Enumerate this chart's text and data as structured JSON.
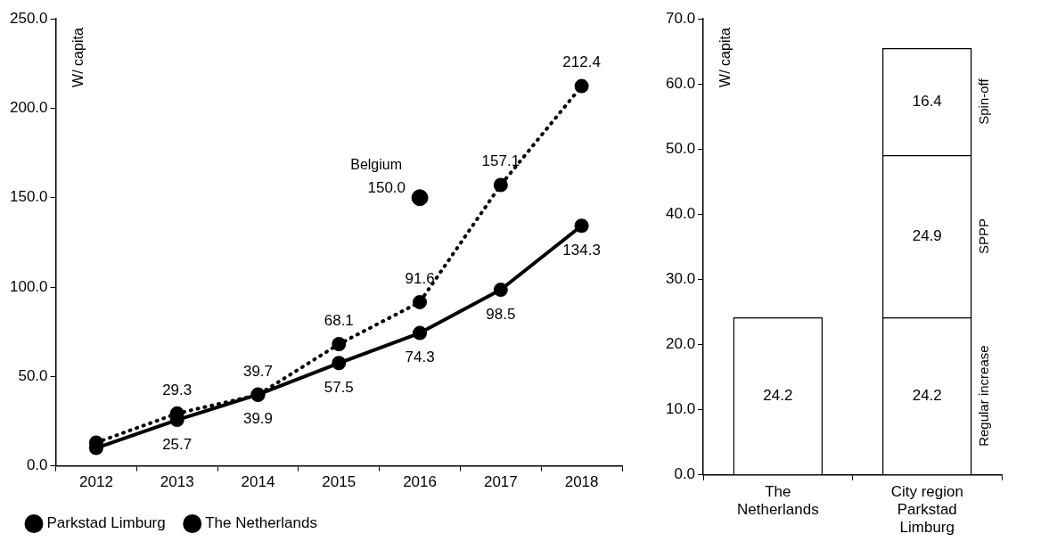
{
  "chart_data": [
    {
      "type": "line",
      "ylabel": "W/ capita",
      "categories": [
        "2012",
        "2013",
        "2014",
        "2015",
        "2016",
        "2017",
        "2018"
      ],
      "series": [
        {
          "name": "Parkstad Limburg",
          "color": "#000000",
          "line_style": "dotted",
          "values": [
            13,
            29.3,
            39.7,
            68.1,
            91.6,
            157.1,
            212.4
          ],
          "value_labels": [
            null,
            "29.3",
            "39.7",
            "68.1",
            "91.6",
            "157.1",
            "212.4"
          ]
        },
        {
          "name": "The Netherlands",
          "color": "#000000",
          "line_style": "solid",
          "values": [
            10,
            25.7,
            39.9,
            57.5,
            74.3,
            98.5,
            134.3
          ],
          "value_labels": [
            null,
            "25.7",
            "39.9",
            "57.5",
            "74.3",
            "98.5",
            "134.3"
          ]
        },
        {
          "name": "Belgium",
          "type": "scatter",
          "color": "#000000",
          "values": [
            null,
            null,
            null,
            null,
            150.0,
            null,
            null
          ],
          "value_labels": [
            null,
            null,
            null,
            null,
            "150.0",
            null,
            null
          ]
        }
      ],
      "ylim": [
        0,
        250
      ],
      "yticks": [
        {
          "value": 0,
          "label": "0.0"
        },
        {
          "value": 50,
          "label": "50.0"
        },
        {
          "value": 100,
          "label": "100.0"
        },
        {
          "value": 150,
          "label": "150.0"
        },
        {
          "value": 200,
          "label": "200.0"
        },
        {
          "value": 250,
          "label": "250.0"
        }
      ],
      "marker": "circle",
      "grid": false,
      "legend": "bottom"
    },
    {
      "type": "bar",
      "ylabel": "W/ capita",
      "categories": [
        "The Netherlands",
        "City region Parkstad Limburg"
      ],
      "stacked": true,
      "series": [
        {
          "name": "Regular increase",
          "color": "#ffffff",
          "values": [
            24.2,
            24.2
          ]
        },
        {
          "name": "SPPP",
          "color": "#ffffff",
          "values": [
            null,
            24.9
          ]
        },
        {
          "name": "Spin-off",
          "color": "#ffffff",
          "values": [
            null,
            16.4
          ]
        }
      ],
      "ylim": [
        0,
        70
      ],
      "yticks": [
        {
          "value": 0,
          "label": "0.0"
        },
        {
          "value": 10,
          "label": "10.0"
        },
        {
          "value": 20,
          "label": "20.0"
        },
        {
          "value": 30,
          "label": "30.0"
        },
        {
          "value": 40,
          "label": "40.0"
        },
        {
          "value": 50,
          "label": "50.0"
        },
        {
          "value": 60,
          "label": "60.0"
        },
        {
          "value": 70,
          "label": "70.0"
        }
      ],
      "data_labels": true,
      "grid": false,
      "legend": false
    }
  ]
}
